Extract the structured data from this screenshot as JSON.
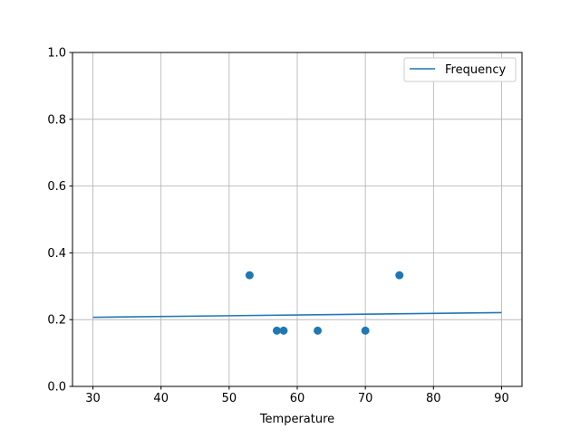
{
  "chart_data": {
    "type": "line+scatter",
    "xlabel": "Temperature",
    "ylabel": "",
    "title": "",
    "xlim": [
      27,
      93
    ],
    "ylim": [
      0,
      1
    ],
    "xticks": [
      "30",
      "40",
      "50",
      "60",
      "70",
      "80",
      "90"
    ],
    "yticks": [
      "0.0",
      "0.2",
      "0.4",
      "0.6",
      "0.8",
      "1.0"
    ],
    "grid": true,
    "legend": {
      "position": "top-right",
      "entries": [
        "Frequency"
      ]
    },
    "color": "#1f77b4",
    "line": {
      "name": "Frequency",
      "x": [
        30,
        90
      ],
      "y": [
        0.207,
        0.221
      ]
    },
    "scatter": {
      "x": [
        53,
        57,
        58,
        63,
        70,
        75
      ],
      "y": [
        0.333,
        0.167,
        0.167,
        0.167,
        0.167,
        0.333
      ]
    }
  }
}
